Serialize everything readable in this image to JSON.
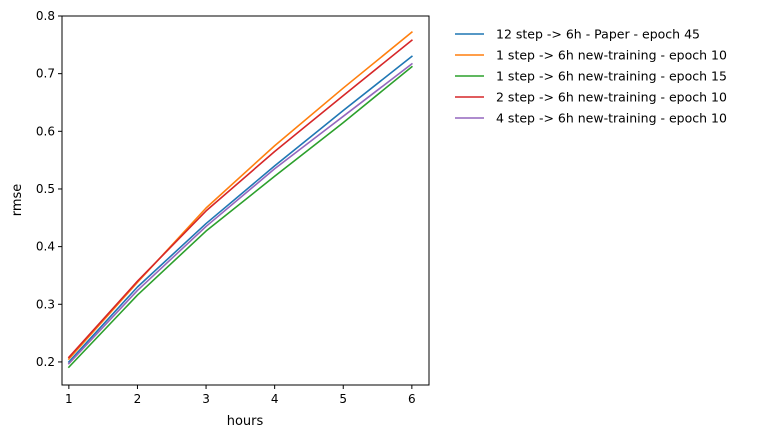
{
  "chart_data": {
    "type": "line",
    "title": "",
    "xlabel": "hours",
    "ylabel": "rmse",
    "x": [
      1,
      2,
      3,
      4,
      5,
      6
    ],
    "xlim": [
      0.9,
      6.25
    ],
    "ylim": [
      0.16,
      0.8
    ],
    "xticks": [
      1,
      2,
      3,
      4,
      5,
      6
    ],
    "yticks": [
      0.2,
      0.3,
      0.4,
      0.5,
      0.6,
      0.7,
      0.8
    ],
    "ytick_labels": [
      "0.2",
      "0.3",
      "0.4",
      "0.5",
      "0.6",
      "0.7",
      "0.8"
    ],
    "grid": false,
    "legend_position": "outside-top-right",
    "series": [
      {
        "name": "12 step -> 6h - Paper - epoch 45",
        "color": "#1f77b4",
        "values": [
          0.2,
          0.33,
          0.44,
          0.54,
          0.636,
          0.73
        ]
      },
      {
        "name": "1 step -> 6h new-training - epoch 10",
        "color": "#ff7f0e",
        "values": [
          0.205,
          0.338,
          0.467,
          0.575,
          0.675,
          0.772
        ]
      },
      {
        "name": "1 step -> 6h new-training - epoch 15",
        "color": "#2ca02c",
        "values": [
          0.191,
          0.316,
          0.427,
          0.522,
          0.615,
          0.712
        ]
      },
      {
        "name": "2 step -> 6h new-training - epoch 10",
        "color": "#d62728",
        "values": [
          0.208,
          0.34,
          0.462,
          0.565,
          0.662,
          0.758
        ]
      },
      {
        "name": "4 step -> 6h new-training - epoch 10",
        "color": "#9467bd",
        "values": [
          0.197,
          0.324,
          0.435,
          0.535,
          0.626,
          0.717
        ]
      }
    ]
  }
}
